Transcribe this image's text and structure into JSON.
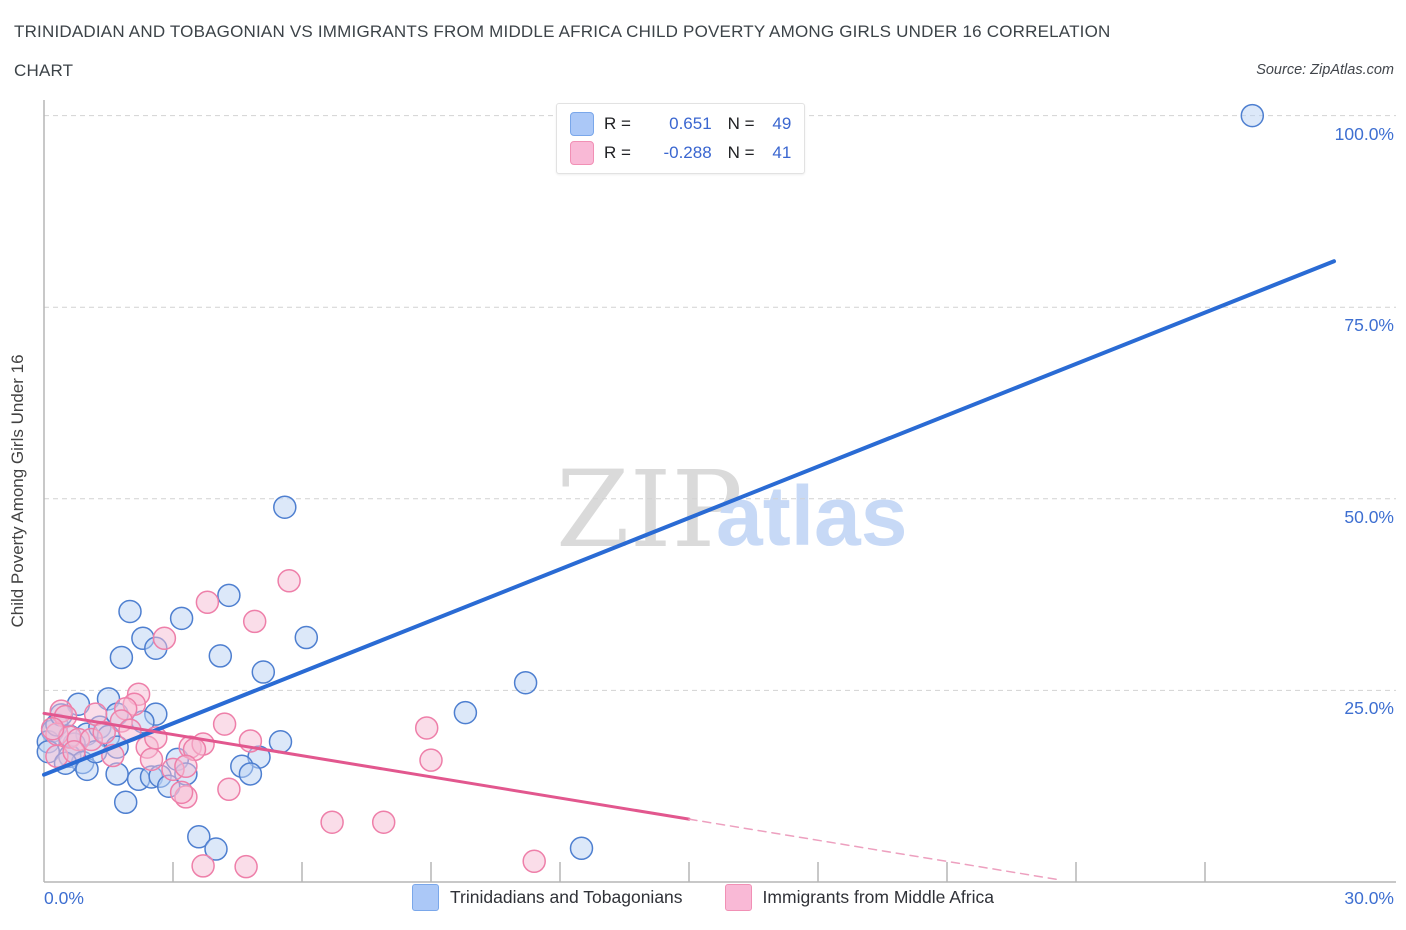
{
  "header": {
    "title_line1": "TRINIDADIAN AND TOBAGONIAN VS IMMIGRANTS FROM MIDDLE AFRICA CHILD POVERTY AMONG GIRLS UNDER 16 CORRELATION",
    "title_line2": "CHART",
    "source": "Source: ZipAtlas.com"
  },
  "legend_box": {
    "series": [
      {
        "r_label": "R = ",
        "r_value": "0.651",
        "n_label": "N = ",
        "n_value": "49"
      },
      {
        "r_label": "R = ",
        "r_value": "-0.288",
        "n_label": "N = ",
        "n_value": "41"
      }
    ]
  },
  "watermark": {
    "zip": "ZIP",
    "atlas": "atlas"
  },
  "axes": {
    "y_title": "Child Poverty Among Girls Under 16",
    "y_tick_labels": [
      "100.0%",
      "75.0%",
      "50.0%",
      "25.0%"
    ],
    "x_min_label": "0.0%",
    "x_max_label": "30.0%"
  },
  "bottom_legend": [
    {
      "label": "Trinidadians and Tobagonians"
    },
    {
      "label": "Immigrants from Middle Africa"
    }
  ],
  "chart_data": {
    "type": "scatter",
    "title": "Trinidadian and Tobagonian vs Immigrants from Middle Africa Child Poverty Among Girls Under 16",
    "xlabel": "",
    "ylabel": "Child Poverty Among Girls Under 16",
    "x_axis": {
      "min": 0,
      "max": 30,
      "unit": "%",
      "ticks": [
        3,
        6,
        9,
        12,
        15,
        18,
        21,
        24,
        27
      ]
    },
    "y_axis": {
      "min": 0,
      "max": 100,
      "unit": "%",
      "gridlines": [
        25,
        50,
        75,
        100
      ]
    },
    "grid": "dashed-horizontal",
    "legend_position": "bottom-center",
    "series": [
      {
        "name": "Trinidadians and Tobagonians",
        "R": 0.651,
        "N": 49,
        "stroke": "#4e7fd0",
        "fill": "#b9d2f3",
        "points": [
          [
            28.1,
            100.0
          ],
          [
            5.6,
            48.9
          ],
          [
            2.0,
            35.3
          ],
          [
            3.2,
            34.4
          ],
          [
            4.3,
            37.4
          ],
          [
            2.3,
            31.8
          ],
          [
            2.6,
            30.5
          ],
          [
            1.8,
            29.3
          ],
          [
            6.1,
            31.9
          ],
          [
            4.1,
            29.5
          ],
          [
            5.1,
            27.4
          ],
          [
            11.2,
            26.0
          ],
          [
            9.8,
            22.1
          ],
          [
            12.5,
            4.4
          ],
          [
            3.6,
            5.9
          ],
          [
            4.0,
            4.3
          ],
          [
            0.8,
            23.2
          ],
          [
            1.5,
            23.9
          ],
          [
            1.7,
            21.9
          ],
          [
            2.6,
            21.9
          ],
          [
            2.3,
            20.9
          ],
          [
            1.0,
            19.3
          ],
          [
            1.3,
            20.2
          ],
          [
            1.5,
            19.0
          ],
          [
            0.2,
            19.7
          ],
          [
            0.1,
            18.3
          ],
          [
            0.7,
            18.0
          ],
          [
            0.1,
            17.0
          ],
          [
            0.6,
            16.4
          ],
          [
            0.9,
            15.6
          ],
          [
            1.0,
            14.7
          ],
          [
            1.7,
            17.6
          ],
          [
            1.7,
            14.1
          ],
          [
            1.9,
            10.4
          ],
          [
            2.2,
            13.4
          ],
          [
            2.5,
            13.7
          ],
          [
            2.7,
            13.8
          ],
          [
            2.9,
            12.5
          ],
          [
            3.1,
            16.0
          ],
          [
            3.3,
            14.1
          ],
          [
            5.5,
            18.3
          ],
          [
            5.0,
            16.3
          ],
          [
            4.6,
            15.1
          ],
          [
            4.8,
            14.1
          ],
          [
            0.3,
            20.5
          ],
          [
            0.6,
            19.0
          ],
          [
            1.2,
            17.0
          ],
          [
            0.5,
            15.5
          ],
          [
            0.4,
            21.8
          ]
        ]
      },
      {
        "name": "Immigrants from Middle Africa",
        "R": -0.288,
        "N": 41,
        "stroke": "#ee7fa9",
        "fill": "#f6bcd4",
        "points": [
          [
            5.7,
            39.3
          ],
          [
            3.8,
            36.5
          ],
          [
            4.9,
            34.0
          ],
          [
            2.8,
            31.8
          ],
          [
            8.9,
            20.1
          ],
          [
            9.0,
            15.9
          ],
          [
            6.7,
            7.8
          ],
          [
            7.9,
            7.8
          ],
          [
            11.4,
            2.7
          ],
          [
            3.7,
            2.1
          ],
          [
            4.7,
            2.0
          ],
          [
            2.2,
            24.5
          ],
          [
            2.1,
            23.2
          ],
          [
            1.2,
            21.9
          ],
          [
            1.9,
            22.6
          ],
          [
            1.8,
            21.0
          ],
          [
            0.4,
            22.3
          ],
          [
            0.5,
            21.6
          ],
          [
            0.3,
            19.3
          ],
          [
            0.6,
            18.9
          ],
          [
            0.8,
            18.6
          ],
          [
            0.3,
            16.4
          ],
          [
            1.1,
            18.6
          ],
          [
            2.4,
            17.6
          ],
          [
            2.5,
            16.0
          ],
          [
            3.0,
            14.7
          ],
          [
            3.3,
            11.1
          ],
          [
            3.2,
            11.7
          ],
          [
            3.4,
            17.6
          ],
          [
            3.7,
            18.0
          ],
          [
            4.2,
            20.6
          ],
          [
            4.8,
            18.4
          ],
          [
            3.5,
            17.3
          ],
          [
            3.3,
            15.1
          ],
          [
            4.3,
            12.1
          ],
          [
            0.2,
            20.0
          ],
          [
            0.7,
            17.0
          ],
          [
            1.4,
            19.5
          ],
          [
            1.6,
            16.5
          ],
          [
            2.0,
            19.8
          ],
          [
            2.6,
            18.8
          ]
        ]
      }
    ],
    "trend_lines": [
      {
        "series": "Trinidadians and Tobagonians",
        "start": [
          0,
          14.0
        ],
        "end": [
          30,
          81.0
        ],
        "style": "solid",
        "color": "#2a6bd4",
        "width": 4
      },
      {
        "series": "Immigrants from Middle Africa",
        "start": [
          0,
          22.0
        ],
        "end": [
          15,
          8.2
        ],
        "style": "solid",
        "color": "#e2578e",
        "width": 3
      },
      {
        "series": "Immigrants from Middle Africa",
        "start": [
          15,
          8.2
        ],
        "end": [
          23.6,
          0.3
        ],
        "style": "dashed",
        "color": "#eda0bf",
        "width": 1.5
      }
    ]
  }
}
